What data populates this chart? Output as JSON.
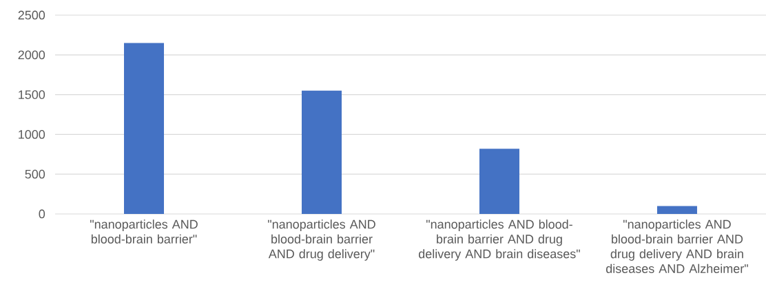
{
  "chart_data": {
    "type": "bar",
    "categories": [
      "\"nanoparticles AND blood-brain barrier\"",
      "\"nanoparticles AND blood-brain barrier AND drug delivery\"",
      "\"nanoparticles AND blood-brain barrier AND drug delivery AND brain diseases\"",
      "\"nanoparticles AND blood-brain barrier AND drug delivery AND brain diseases AND Alzheimer\""
    ],
    "values": [
      2150,
      1550,
      820,
      100
    ],
    "color": "#4472c4",
    "ylim": [
      0,
      2500
    ],
    "yticks": [
      0,
      500,
      1000,
      1500,
      2000,
      2500
    ],
    "grid": "y"
  }
}
